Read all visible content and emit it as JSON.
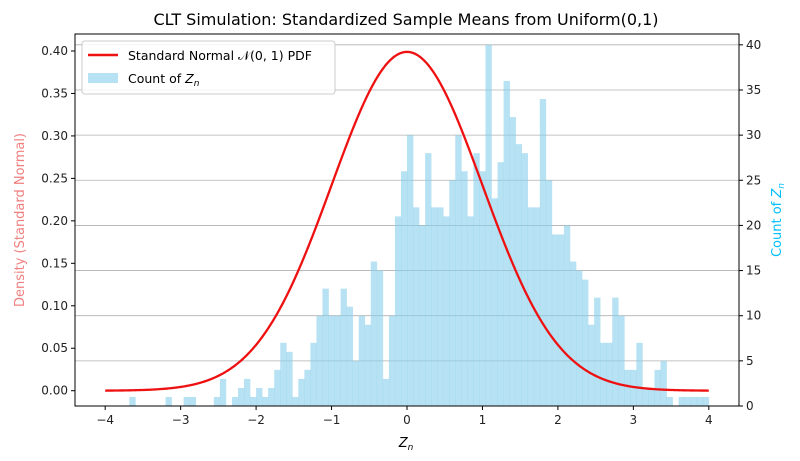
{
  "chart_data": {
    "type": "bar",
    "title": "CLT Simulation: Standardized Sample Means from Uniform(0,1)",
    "xlabel": "Z_n",
    "ylabel_left": "Density (Standard Normal)",
    "ylabel_right": "Count of Z_n",
    "xlim": [
      -4.4,
      4.4
    ],
    "ylim_left": [
      -0.018,
      0.42
    ],
    "ylim_right": [
      0,
      41.2
    ],
    "x_ticks": [
      -4,
      -3,
      -2,
      -1,
      0,
      1,
      2,
      3,
      4
    ],
    "x_tick_labels": [
      "−4",
      "−3",
      "−2",
      "−1",
      "0",
      "1",
      "2",
      "3",
      "4"
    ],
    "y_ticks_left": [
      0.0,
      0.05,
      0.1,
      0.15,
      0.2,
      0.25,
      0.3,
      0.35,
      0.4
    ],
    "y_tick_labels_left": [
      "0.00",
      "0.05",
      "0.10",
      "0.15",
      "0.20",
      "0.25",
      "0.30",
      "0.35",
      "0.40"
    ],
    "y_ticks_right": [
      0,
      5,
      10,
      15,
      20,
      25,
      30,
      35,
      40
    ],
    "y_tick_labels_right": [
      "0",
      "5",
      "10",
      "15",
      "20",
      "25",
      "30",
      "35",
      "40"
    ],
    "grid": "horizontal lines at right-axis ticks",
    "legend_position": "top-left",
    "colors": {
      "curve": "#ee1111",
      "bars": "#87ceeb",
      "left_label": "#f08080",
      "right_label": "#00bfff"
    },
    "series": [
      {
        "name": "Standard Normal 𝒩(0, 1) PDF",
        "type": "line",
        "function": "standard normal pdf",
        "x_range": [
          -4,
          4
        ]
      },
      {
        "name": "Count of Z_n",
        "type": "histogram",
        "bin_start": -4,
        "bin_width": 0.08,
        "counts": [
          0,
          0,
          0,
          0,
          1,
          0,
          0,
          0,
          0,
          0,
          1,
          0,
          0,
          1,
          1,
          0,
          0,
          0,
          1,
          3,
          0,
          1,
          2,
          3,
          1,
          2,
          1,
          2,
          4,
          7,
          6,
          1,
          3,
          4,
          7,
          10,
          13,
          10,
          10,
          13,
          11,
          5,
          10,
          9,
          16,
          15,
          3,
          10,
          21,
          26,
          30,
          22,
          20,
          28,
          22,
          22,
          21,
          25,
          30,
          26,
          21,
          28,
          26,
          40,
          23,
          27,
          36,
          32,
          29,
          28,
          22,
          22,
          34,
          25,
          19,
          19,
          20,
          16,
          15,
          14,
          9,
          12,
          7,
          7,
          12,
          10,
          4,
          4,
          7,
          2,
          2,
          4,
          5,
          1,
          0,
          1,
          1,
          1,
          1,
          1
        ]
      }
    ]
  }
}
